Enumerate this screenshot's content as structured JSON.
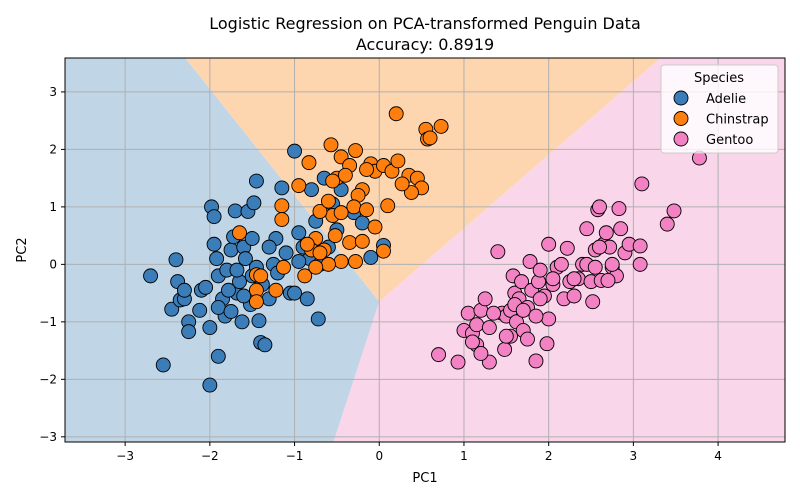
{
  "chart_data": {
    "type": "scatter",
    "title": "Logistic Regression on PCA-transformed Penguin Data",
    "subtitle": "Accuracy: 0.8919",
    "xlabel": "PC1",
    "ylabel": "PC2",
    "xlim": [
      -3.71,
      4.79
    ],
    "ylim": [
      -3.09,
      3.59
    ],
    "xticks": [
      -3,
      -2,
      -1,
      0,
      1,
      2,
      3,
      4
    ],
    "yticks": [
      -3,
      -2,
      -1,
      0,
      1,
      2,
      3
    ],
    "grid": true,
    "legend": {
      "title": "Species",
      "placement": "top-right"
    },
    "decision_regions": [
      {
        "class": "Adelie",
        "color": "#c0d5e6",
        "polygon": [
          [
            -3.71,
            -3.09
          ],
          [
            -0.54,
            -3.09
          ],
          [
            0.0,
            -0.65
          ],
          [
            -2.29,
            3.59
          ],
          [
            -3.71,
            3.59
          ]
        ]
      },
      {
        "class": "Chinstrap",
        "color": "#fdd6b0",
        "polygon": [
          [
            -2.29,
            3.59
          ],
          [
            0.0,
            -0.65
          ],
          [
            3.32,
            3.59
          ]
        ]
      },
      {
        "class": "Gentoo",
        "color": "#f9d6e9",
        "polygon": [
          [
            -0.54,
            -3.09
          ],
          [
            4.79,
            -3.09
          ],
          [
            4.79,
            3.59
          ],
          [
            3.32,
            3.59
          ],
          [
            0.0,
            -0.65
          ]
        ]
      }
    ],
    "series": [
      {
        "name": "Adelie",
        "color": "#3a7db8",
        "points": [
          [
            -2.7,
            -0.2
          ],
          [
            -2.55,
            -1.75
          ],
          [
            -2.45,
            -0.78
          ],
          [
            -2.4,
            0.08
          ],
          [
            -2.38,
            -0.3
          ],
          [
            -2.35,
            -0.62
          ],
          [
            -2.3,
            -0.6
          ],
          [
            -2.3,
            -0.45
          ],
          [
            -2.25,
            -1.0
          ],
          [
            -2.25,
            -1.17
          ],
          [
            -2.1,
            -0.45
          ],
          [
            -2.05,
            -0.4
          ],
          [
            -2.0,
            -1.1
          ],
          [
            -2.0,
            -2.1
          ],
          [
            -1.98,
            1.0
          ],
          [
            -1.95,
            0.83
          ],
          [
            -1.95,
            0.35
          ],
          [
            -1.92,
            0.1
          ],
          [
            -1.9,
            -0.2
          ],
          [
            -1.9,
            -1.6
          ],
          [
            -1.85,
            -0.6
          ],
          [
            -1.82,
            -0.9
          ],
          [
            -1.8,
            -0.1
          ],
          [
            -1.75,
            0.25
          ],
          [
            -1.72,
            0.48
          ],
          [
            -1.7,
            0.93
          ],
          [
            -1.68,
            -0.5
          ],
          [
            -1.65,
            -0.3
          ],
          [
            -1.62,
            -1.0
          ],
          [
            -1.6,
            0.3
          ],
          [
            -1.58,
            0.1
          ],
          [
            -1.55,
            0.92
          ],
          [
            -1.52,
            -0.7
          ],
          [
            -1.5,
            -0.2
          ],
          [
            -1.5,
            0.45
          ],
          [
            -1.48,
            1.07
          ],
          [
            -1.45,
            1.45
          ],
          [
            -1.42,
            -0.98
          ],
          [
            -1.4,
            -1.36
          ],
          [
            -1.38,
            -0.35
          ],
          [
            -1.35,
            -1.4
          ],
          [
            -1.3,
            -0.6
          ],
          [
            -1.25,
            0.0
          ],
          [
            -1.22,
            0.45
          ],
          [
            -1.2,
            -0.15
          ],
          [
            -1.15,
            1.33
          ],
          [
            -1.1,
            0.2
          ],
          [
            -1.05,
            -0.5
          ],
          [
            -1.0,
            -0.5
          ],
          [
            -1.0,
            1.97
          ],
          [
            -0.95,
            0.55
          ],
          [
            -0.9,
            0.3
          ],
          [
            -0.85,
            -0.6
          ],
          [
            -0.82,
            0.1
          ],
          [
            -0.75,
            0.75
          ],
          [
            -0.72,
            -0.95
          ],
          [
            -0.7,
            0.0
          ],
          [
            -0.65,
            1.5
          ],
          [
            -0.6,
            0.3
          ],
          [
            -0.55,
            1.05
          ],
          [
            -0.5,
            0.6
          ],
          [
            -0.45,
            1.3
          ],
          [
            -0.3,
            0.9
          ],
          [
            -0.2,
            0.72
          ],
          [
            0.05,
            0.33
          ],
          [
            -0.1,
            0.12
          ],
          [
            -1.68,
            -0.1
          ],
          [
            -1.78,
            -0.45
          ],
          [
            -2.12,
            -0.8
          ],
          [
            -1.6,
            -0.55
          ],
          [
            -1.45,
            -0.05
          ],
          [
            -1.3,
            0.3
          ],
          [
            -1.9,
            -0.75
          ],
          [
            -1.75,
            -0.82
          ],
          [
            -0.95,
            0.05
          ],
          [
            -0.8,
            1.3
          ]
        ]
      },
      {
        "name": "Chinstrap",
        "color": "#ff7f0e",
        "points": [
          [
            0.2,
            2.62
          ],
          [
            0.55,
            2.35
          ],
          [
            0.57,
            2.18
          ],
          [
            0.6,
            2.2
          ],
          [
            0.73,
            2.4
          ],
          [
            -0.57,
            2.08
          ],
          [
            -0.83,
            1.77
          ],
          [
            -0.28,
            1.98
          ],
          [
            -0.1,
            1.75
          ],
          [
            -0.05,
            1.62
          ],
          [
            0.05,
            1.72
          ],
          [
            0.15,
            1.62
          ],
          [
            0.22,
            1.8
          ],
          [
            0.35,
            1.55
          ],
          [
            0.45,
            1.5
          ],
          [
            0.5,
            1.33
          ],
          [
            0.38,
            1.25
          ],
          [
            0.27,
            1.4
          ],
          [
            -0.45,
            1.87
          ],
          [
            -0.35,
            1.72
          ],
          [
            -0.15,
            1.65
          ],
          [
            -0.2,
            1.3
          ],
          [
            -0.25,
            1.2
          ],
          [
            -0.5,
            1.5
          ],
          [
            -0.4,
            1.55
          ],
          [
            -0.55,
            1.45
          ],
          [
            -0.3,
            1.0
          ],
          [
            -0.55,
            0.85
          ],
          [
            -0.45,
            0.9
          ],
          [
            -0.15,
            0.95
          ],
          [
            0.1,
            1.02
          ],
          [
            -0.7,
            0.92
          ],
          [
            -0.6,
            1.1
          ],
          [
            -0.35,
            0.38
          ],
          [
            -0.2,
            0.4
          ],
          [
            0.05,
            0.23
          ],
          [
            -0.05,
            0.65
          ],
          [
            -0.45,
            0.05
          ],
          [
            -0.65,
            0.25
          ],
          [
            -0.75,
            0.45
          ],
          [
            -0.8,
            0.25
          ],
          [
            -0.7,
            0.2
          ],
          [
            -0.85,
            0.35
          ],
          [
            -0.95,
            1.37
          ],
          [
            -1.15,
            1.02
          ],
          [
            -1.15,
            0.78
          ],
          [
            -1.13,
            -0.05
          ],
          [
            -1.65,
            0.55
          ],
          [
            -1.45,
            -0.18
          ],
          [
            -1.4,
            -0.2
          ],
          [
            -1.45,
            -0.45
          ],
          [
            -1.45,
            -0.65
          ],
          [
            -1.22,
            -0.45
          ],
          [
            -0.88,
            -0.2
          ],
          [
            -0.6,
            0.0
          ],
          [
            -0.52,
            0.5
          ],
          [
            -0.28,
            0.05
          ],
          [
            -0.75,
            -0.05
          ]
        ]
      },
      {
        "name": "Gentoo",
        "color": "#f282c3",
        "points": [
          [
            0.7,
            -1.57
          ],
          [
            0.93,
            -1.7
          ],
          [
            1.05,
            -0.85
          ],
          [
            1.15,
            -1.4
          ],
          [
            1.3,
            -1.7
          ],
          [
            1.0,
            -1.15
          ],
          [
            1.1,
            -1.2
          ],
          [
            1.2,
            -0.8
          ],
          [
            1.15,
            -1.05
          ],
          [
            1.25,
            -0.6
          ],
          [
            1.3,
            -1.1
          ],
          [
            1.45,
            -0.85
          ],
          [
            1.48,
            -1.48
          ],
          [
            1.5,
            -0.9
          ],
          [
            1.55,
            -0.8
          ],
          [
            1.58,
            -0.2
          ],
          [
            1.6,
            -0.5
          ],
          [
            1.62,
            -1.0
          ],
          [
            1.65,
            -0.6
          ],
          [
            1.68,
            -0.3
          ],
          [
            1.7,
            -1.15
          ],
          [
            1.75,
            -0.75
          ],
          [
            1.78,
            0.05
          ],
          [
            1.8,
            -0.45
          ],
          [
            1.85,
            -1.68
          ],
          [
            1.88,
            -0.3
          ],
          [
            1.9,
            -0.1
          ],
          [
            1.95,
            -0.55
          ],
          [
            1.98,
            -1.38
          ],
          [
            2.0,
            -0.95
          ],
          [
            2.0,
            0.35
          ],
          [
            2.05,
            -0.35
          ],
          [
            2.1,
            -0.05
          ],
          [
            2.18,
            -0.6
          ],
          [
            2.22,
            0.28
          ],
          [
            2.3,
            -0.55
          ],
          [
            2.35,
            -0.25
          ],
          [
            2.4,
            0.0
          ],
          [
            2.45,
            0.62
          ],
          [
            2.5,
            -0.3
          ],
          [
            2.52,
            -0.65
          ],
          [
            2.55,
            0.25
          ],
          [
            2.58,
            0.95
          ],
          [
            2.6,
            1.0
          ],
          [
            2.62,
            -0.28
          ],
          [
            2.65,
            0.35
          ],
          [
            2.68,
            0.55
          ],
          [
            2.72,
            0.3
          ],
          [
            2.75,
            -0.05
          ],
          [
            2.8,
            -0.2
          ],
          [
            2.83,
            0.97
          ],
          [
            2.85,
            0.62
          ],
          [
            2.9,
            0.2
          ],
          [
            2.95,
            0.35
          ],
          [
            3.08,
            0.0
          ],
          [
            3.08,
            0.32
          ],
          [
            3.1,
            1.4
          ],
          [
            3.4,
            0.7
          ],
          [
            3.48,
            0.93
          ],
          [
            3.78,
            1.85
          ],
          [
            1.4,
            0.22
          ],
          [
            1.55,
            -1.25
          ],
          [
            1.75,
            -1.3
          ],
          [
            1.2,
            -1.55
          ],
          [
            2.25,
            -0.3
          ],
          [
            2.7,
            -0.28
          ],
          [
            2.6,
            0.3
          ],
          [
            2.45,
            0.0
          ],
          [
            1.9,
            -0.6
          ],
          [
            1.6,
            -0.7
          ],
          [
            1.85,
            -0.9
          ],
          [
            2.05,
            -0.25
          ],
          [
            2.3,
            -0.25
          ],
          [
            2.55,
            -0.05
          ],
          [
            2.75,
            0.0
          ],
          [
            2.15,
            0.0
          ],
          [
            1.35,
            -0.85
          ],
          [
            1.5,
            -1.25
          ],
          [
            1.1,
            -1.35
          ],
          [
            1.7,
            -0.8
          ]
        ]
      }
    ]
  }
}
